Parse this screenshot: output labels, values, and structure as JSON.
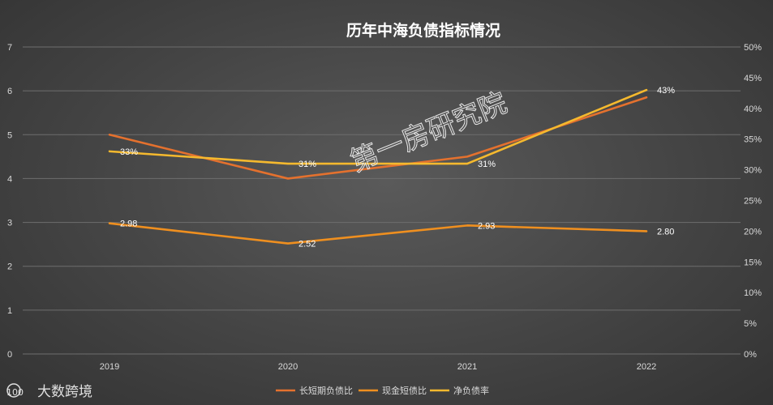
{
  "chart_data": {
    "type": "line",
    "title": "历年中海负债指标情况",
    "categories": [
      "2019",
      "2020",
      "2021",
      "2022"
    ],
    "y_left": {
      "min": 0,
      "max": 7,
      "ticks": [
        "0",
        "1",
        "2",
        "3",
        "4",
        "5",
        "6",
        "7"
      ]
    },
    "y_right": {
      "min": 0,
      "max": 50,
      "ticks": [
        "0%",
        "5%",
        "10%",
        "15%",
        "20%",
        "25%",
        "30%",
        "35%",
        "40%",
        "45%",
        "50%"
      ]
    },
    "grid": true,
    "legend_position": "bottom",
    "series": [
      {
        "name": "长短期负债比",
        "axis": "left",
        "color": "#e4712e",
        "values": [
          5.0,
          4.0,
          4.5,
          5.85
        ],
        "labels": [
          "",
          "",
          "",
          ""
        ]
      },
      {
        "name": "现金短债比",
        "axis": "left",
        "color": "#ef8f1f",
        "values": [
          2.98,
          2.52,
          2.93,
          2.8
        ],
        "labels": [
          "2.98",
          "2.52",
          "2.93",
          "2.80"
        ]
      },
      {
        "name": "净负债率",
        "axis": "right",
        "color": "#f5b92e",
        "values": [
          33,
          31,
          31,
          43
        ],
        "labels": [
          "33%",
          "31%",
          "31%",
          "43%"
        ]
      }
    ]
  },
  "watermark": {
    "text": "第一房研究院"
  },
  "logo": {
    "mark": "100",
    "text": "大数跨境"
  }
}
